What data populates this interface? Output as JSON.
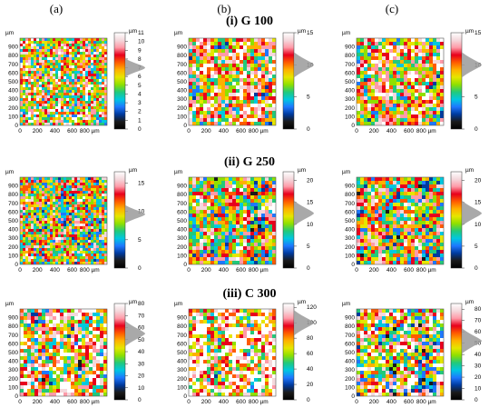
{
  "columns": [
    "(a)",
    "(b)",
    "(c)"
  ],
  "rows": [
    {
      "title": "(i) G 100",
      "panels": [
        {
          "scale": [
            0,
            1,
            2,
            3,
            4,
            5,
            6,
            7,
            8,
            9,
            10,
            11
          ],
          "smax": 11,
          "peak": 7,
          "noise": "fine"
        },
        {
          "scale": [
            0,
            5,
            10,
            15
          ],
          "smax": 15,
          "peak": 10,
          "noise": "medium"
        },
        {
          "scale": [
            0,
            5,
            10,
            15
          ],
          "smax": 15,
          "peak": 10,
          "noise": "medium"
        }
      ]
    },
    {
      "title": "(ii) G 250",
      "panels": [
        {
          "scale": [
            0,
            5,
            10,
            15
          ],
          "smax": 17,
          "peak": 9.5,
          "noise": "fine"
        },
        {
          "scale": [
            0,
            5,
            10,
            15,
            20
          ],
          "smax": 22,
          "peak": 12.5,
          "noise": "medium"
        },
        {
          "scale": [
            0,
            5,
            10,
            15,
            20
          ],
          "smax": 22,
          "peak": 12.5,
          "noise": "medium"
        }
      ]
    },
    {
      "title": "(iii) C 300",
      "panels": [
        {
          "scale": [
            0,
            10,
            20,
            30,
            40,
            50,
            60,
            70,
            80
          ],
          "smax": 80,
          "peak": 55,
          "noise": "coarse"
        },
        {
          "scale": [
            0,
            20,
            40,
            60,
            80,
            100,
            120
          ],
          "smax": 125,
          "peak": 100,
          "noise": "coarse"
        },
        {
          "scale": [
            0,
            10,
            20,
            30,
            40,
            50,
            60,
            70,
            80
          ],
          "smax": 85,
          "peak": 52,
          "noise": "coarse"
        }
      ]
    }
  ],
  "axis": {
    "unit": "µm",
    "y_ticks": [
      0,
      100,
      200,
      300,
      400,
      500,
      600,
      700,
      800,
      900
    ],
    "x_ticks": [
      "0",
      "200",
      "400",
      "600",
      "800 µm"
    ],
    "max": 1000
  },
  "colormap": [
    "#000000",
    "#1a1a1a",
    "#003a9e",
    "#1e78ff",
    "#00c8e0",
    "#22c97a",
    "#8fe000",
    "#e6e600",
    "#ffb000",
    "#ff5a00",
    "#e8001c",
    "#ff9aa8",
    "#f4d8dc",
    "#ffffff"
  ]
}
